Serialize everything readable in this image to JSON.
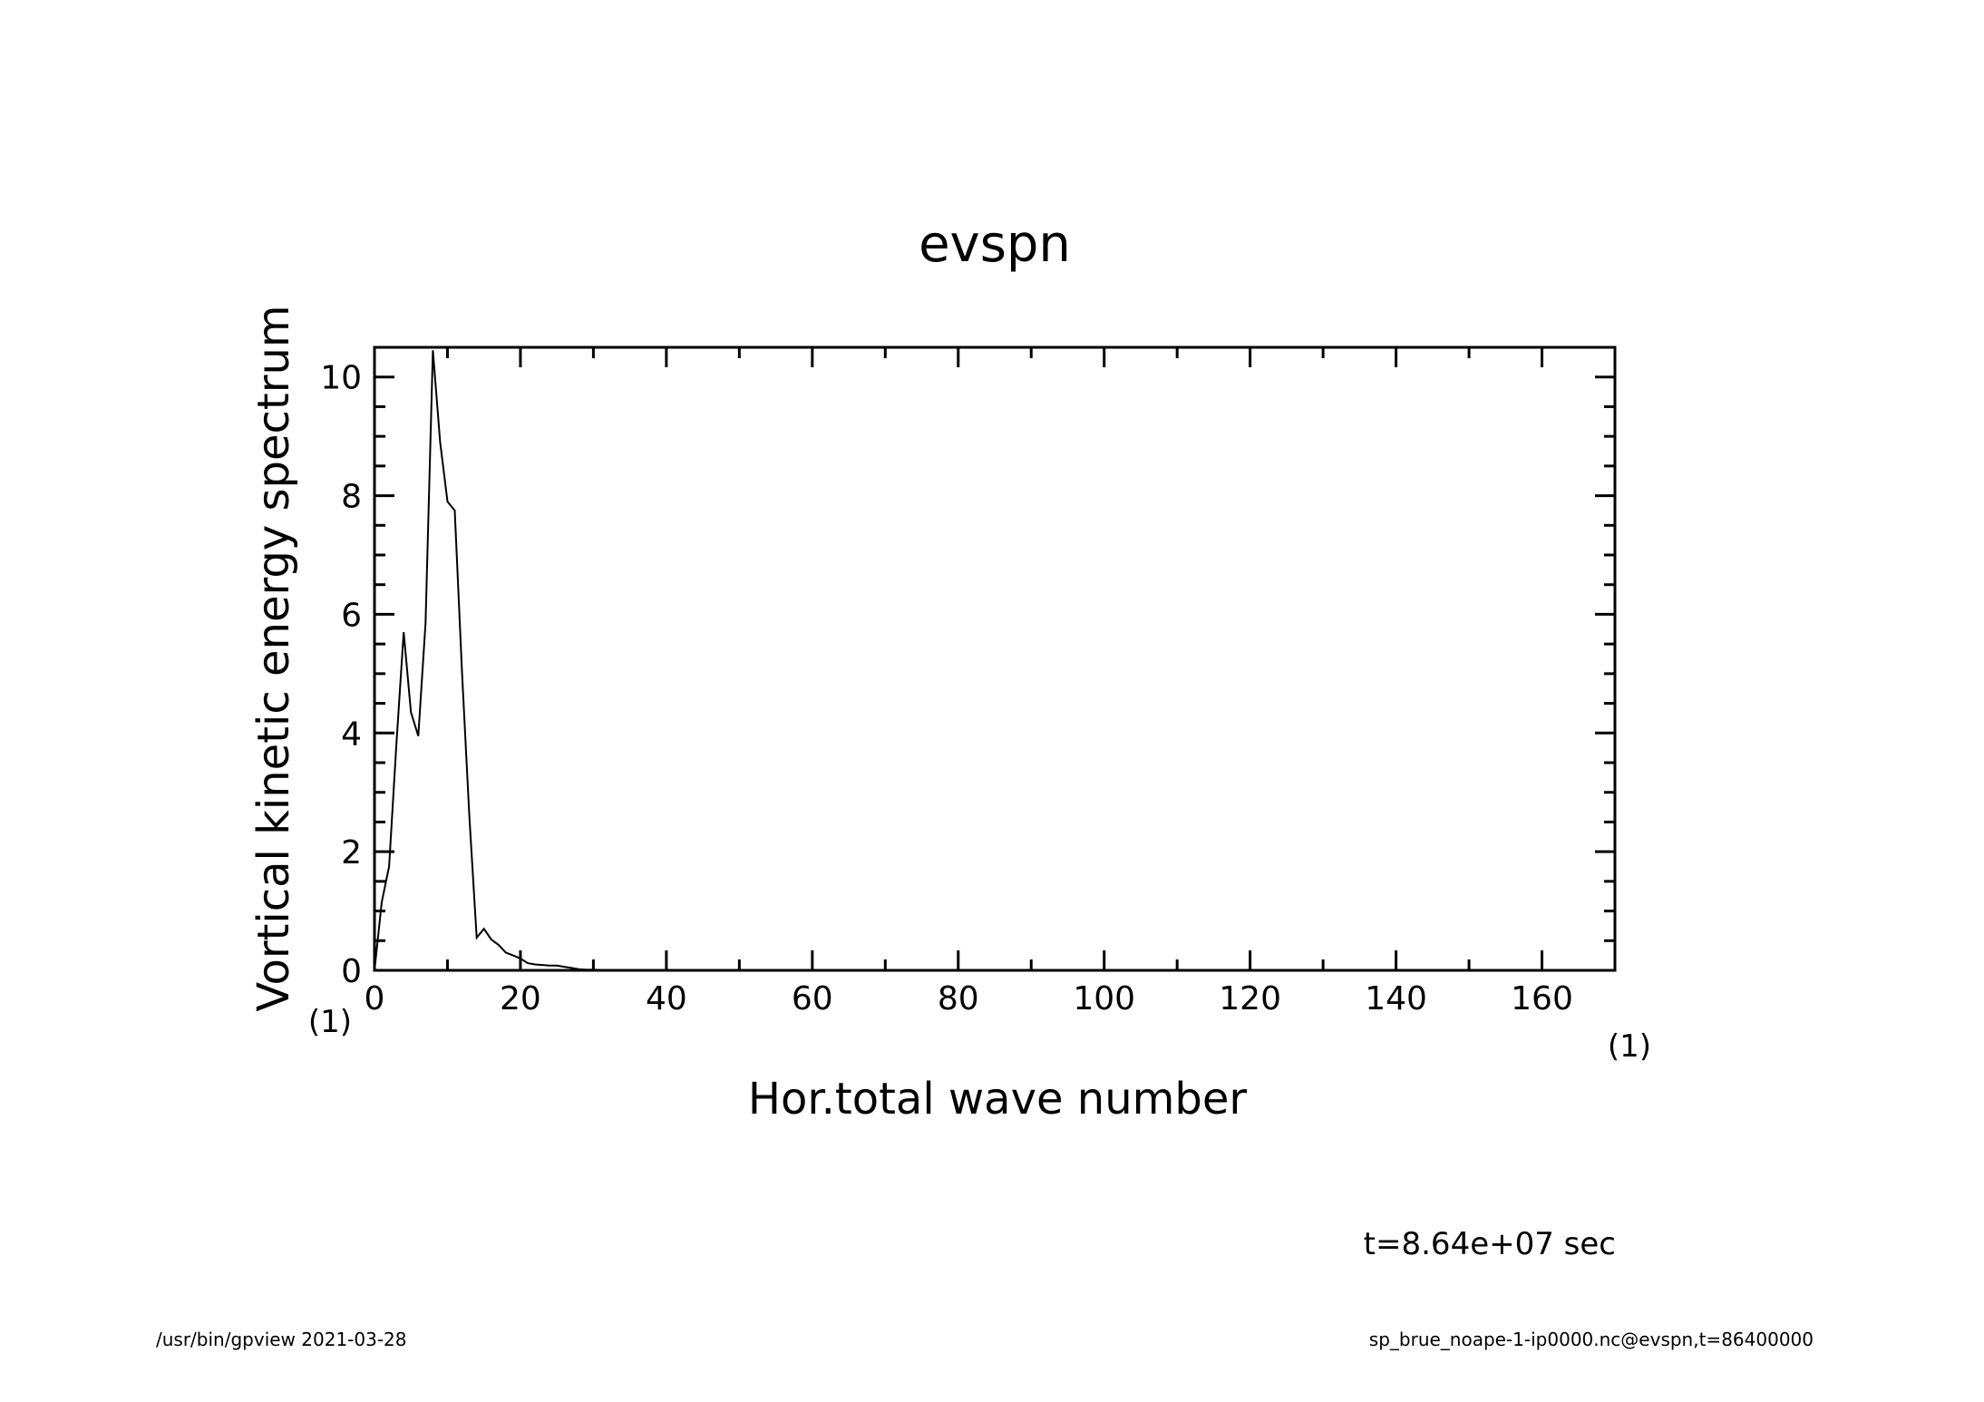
{
  "chart_data": {
    "type": "line",
    "title": "evspn",
    "xlabel": "Hor.total wave number",
    "ylabel": "Vortical kinetic energy spectrum",
    "x_unit": "(1)",
    "y_unit": "(1)",
    "xlim": [
      0,
      170
    ],
    "ylim": [
      0,
      10.5
    ],
    "x_ticks": [
      0,
      20,
      40,
      60,
      80,
      100,
      120,
      140,
      160
    ],
    "y_ticks": [
      0,
      2,
      4,
      6,
      8,
      10
    ],
    "x_minor_step": 10,
    "y_minor_step": 0.5,
    "grid": false,
    "series": [
      {
        "x": [
          0,
          1,
          2,
          3,
          4,
          5,
          6,
          7,
          8,
          9,
          10,
          11,
          12,
          13,
          14,
          15,
          16,
          17,
          18,
          19,
          20,
          21,
          22,
          23,
          24,
          25,
          26,
          27,
          28,
          29,
          30,
          32,
          34,
          40,
          50,
          60,
          80,
          100,
          120,
          140,
          160,
          170
        ],
        "y": [
          0.0,
          1.15,
          1.75,
          3.8,
          5.7,
          4.35,
          3.95,
          5.85,
          10.45,
          8.9,
          7.9,
          7.75,
          5.0,
          2.6,
          0.55,
          0.7,
          0.52,
          0.43,
          0.3,
          0.25,
          0.2,
          0.12,
          0.1,
          0.09,
          0.08,
          0.08,
          0.06,
          0.04,
          0.02,
          0.01,
          0.01,
          0.0,
          0.0,
          0.0,
          0.0,
          0.0,
          0.0,
          0.0,
          0.0,
          0.0,
          0.0,
          0.0
        ]
      }
    ]
  },
  "annotation": "t=8.64e+07 sec",
  "footer": {
    "left": "/usr/bin/gpview   2021-03-28",
    "right": "sp_brue_noape-1-ip0000.nc@evspn,t=86400000"
  }
}
